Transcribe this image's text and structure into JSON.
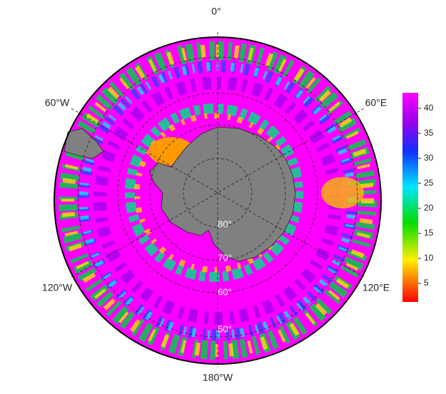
{
  "map": {
    "longitude_labels": [
      "0°",
      "60°W",
      "60°E",
      "120°W",
      "120°E",
      "180°W"
    ],
    "latitude_labels": [
      "80°",
      "70°",
      "60°",
      "50°"
    ],
    "colorbar": {
      "lim": [
        1.3,
        43.1
      ],
      "ticks": [
        5,
        10,
        15,
        20,
        25,
        30,
        35,
        40
      ]
    }
  }
}
